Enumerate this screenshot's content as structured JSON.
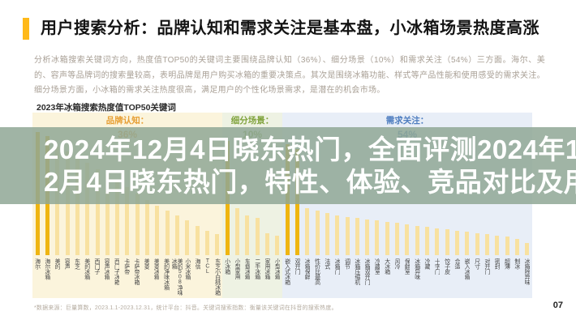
{
  "slide": {
    "title": "用户搜索分析：品牌认知和需求关注是基本盘，小冰箱场景热度高涨",
    "intro": "分析冰箱搜索关键词方向，热度值TOP50的关键词主要围绕品牌认知（36%）、细分场景（10%）和需求关注（54%）三方面。海尔、美的、容声等品牌词的搜索量较高，表明品牌是用户购买冰箱的重要决策点。其次是围绕冰箱功能、样式等产品性能和使用感受的需求关注。细分场景方面，小冰箱的需求关注热度很高，满足用户的个性化场景需求，是潜在的机会市场。",
    "footnote": "*数据来源：巨量算数，2023.1.1-2023.12.31，统计平台：抖音。关键词搜索指数：衡量该关键词在抖音的搜索热度。",
    "page_number": "07"
  },
  "overlay": {
    "lines": [
      "2024年12月4日晓东热门，全面评测2024年1",
      "2月4日晓东热门，特性、体验、竞品对比及用"
    ],
    "background": "#8FA795",
    "text_color": "#FFFFFF"
  },
  "chart_data": {
    "type": "bar",
    "title": "2023年冰箱搜索热度值TOP50关键词",
    "grid": false,
    "legend_position": "none",
    "ylim": [
      0,
      100
    ],
    "colors": {
      "bar": "#F8E1A0",
      "bar_highlight": "#EFB511"
    },
    "groups": [
      {
        "key": "brand",
        "label": "品牌认知：",
        "share": "36%",
        "color": "#E79F35",
        "bg": "#FBF4DC",
        "items": [
          {
            "name": "海尔",
            "value": 100,
            "highlight": true
          },
          {
            "name": "海尔冰箱",
            "value": 97,
            "highlight": true
          },
          {
            "name": "美的",
            "value": 88,
            "highlight": false
          },
          {
            "name": "容声",
            "value": 84,
            "highlight": false
          },
          {
            "name": "东芝",
            "value": 80,
            "highlight": false
          },
          {
            "name": "美的冰箱",
            "value": 75,
            "highlight": false
          },
          {
            "name": "西门子",
            "value": 70,
            "highlight": false
          },
          {
            "name": "容声冰箱",
            "value": 66,
            "highlight": false
          },
          {
            "name": "西门子冰箱",
            "value": 60,
            "highlight": false
          },
          {
            "name": "卡萨帝",
            "value": 55,
            "highlight": false
          },
          {
            "name": "卡萨帝冰箱",
            "value": 50,
            "highlight": false
          },
          {
            "name": "美菱",
            "value": 45,
            "highlight": false
          },
          {
            "name": "美菱冰箱",
            "value": 40,
            "highlight": false
          },
          {
            "name": "美的净味冰箱",
            "value": 36,
            "highlight": false
          },
          {
            "name": "美的508净味冰箱",
            "value": 32,
            "highlight": false
          },
          {
            "name": "小米冰箱",
            "value": 28,
            "highlight": false
          },
          {
            "name": "海信",
            "value": 24,
            "highlight": false
          },
          {
            "name": "TCL",
            "value": 20,
            "highlight": false
          },
          {
            "name": "东芝小白桃冰箱",
            "value": 17,
            "highlight": false
          }
        ]
      },
      {
        "key": "scene",
        "label": "细分场景：",
        "share": "10%",
        "color": "#7FA23B",
        "bg": "#EEF2E3",
        "items": [
          {
            "name": "小冰箱",
            "value": 93,
            "highlight": true
          },
          {
            "name": "小型家用",
            "value": 38,
            "highlight": false
          },
          {
            "name": "车载冰箱",
            "value": 32,
            "highlight": false
          },
          {
            "name": "二手冰箱",
            "value": 30,
            "highlight": false
          },
          {
            "name": "家用冰箱",
            "value": 18,
            "highlight": false
          },
          {
            "name": "小型冰箱",
            "value": 16,
            "highlight": false
          }
        ]
      },
      {
        "key": "need",
        "label": "需求关注：",
        "share": "54%",
        "color": "#4F7EC0",
        "bg": "#E8EEF7",
        "items": [
          {
            "name": "嵌入式冰箱",
            "value": 90,
            "highlight": true
          },
          {
            "name": "双开门",
            "value": 86,
            "highlight": true
          },
          {
            "name": "冰箱保鲜",
            "value": 38,
            "highlight": false
          },
          {
            "name": "性价比最高",
            "value": 36,
            "highlight": false
          },
          {
            "name": "法式",
            "value": 34,
            "highlight": false
          },
          {
            "name": "冰箱门",
            "value": 32,
            "highlight": false
          },
          {
            "name": "调节",
            "value": 31,
            "highlight": false
          },
          {
            "name": "冰箱压缩机",
            "value": 30,
            "highlight": false
          },
          {
            "name": "冰箱双开门",
            "value": 29,
            "highlight": false
          },
          {
            "name": "冷藏室",
            "value": 28,
            "highlight": false
          },
          {
            "name": "大冰箱",
            "value": 27,
            "highlight": false
          },
          {
            "name": "风冷",
            "value": 26,
            "highlight": false
          },
          {
            "name": "保鲜室",
            "value": 25,
            "highlight": false
          },
          {
            "name": "冰箱异味",
            "value": 24,
            "highlight": false
          },
          {
            "name": "冷藏",
            "value": 23,
            "highlight": false
          },
          {
            "name": "十字门",
            "value": 22,
            "highlight": false
          },
          {
            "name": "饺子皮",
            "value": 21,
            "highlight": false
          },
          {
            "name": "合适",
            "value": 20,
            "highlight": false
          },
          {
            "name": "嵌入冰箱",
            "value": 19,
            "highlight": false
          },
          {
            "name": "尺寸",
            "value": 18,
            "highlight": false
          },
          {
            "name": "对开门",
            "value": 17,
            "highlight": false
          },
          {
            "name": "密封",
            "value": 16,
            "highlight": false
          },
          {
            "name": "超薄",
            "value": 15,
            "highlight": false
          },
          {
            "name": "制冰",
            "value": 13,
            "highlight": false
          },
          {
            "name": "冰箱除异味",
            "value": 10,
            "highlight": false
          }
        ]
      }
    ]
  }
}
